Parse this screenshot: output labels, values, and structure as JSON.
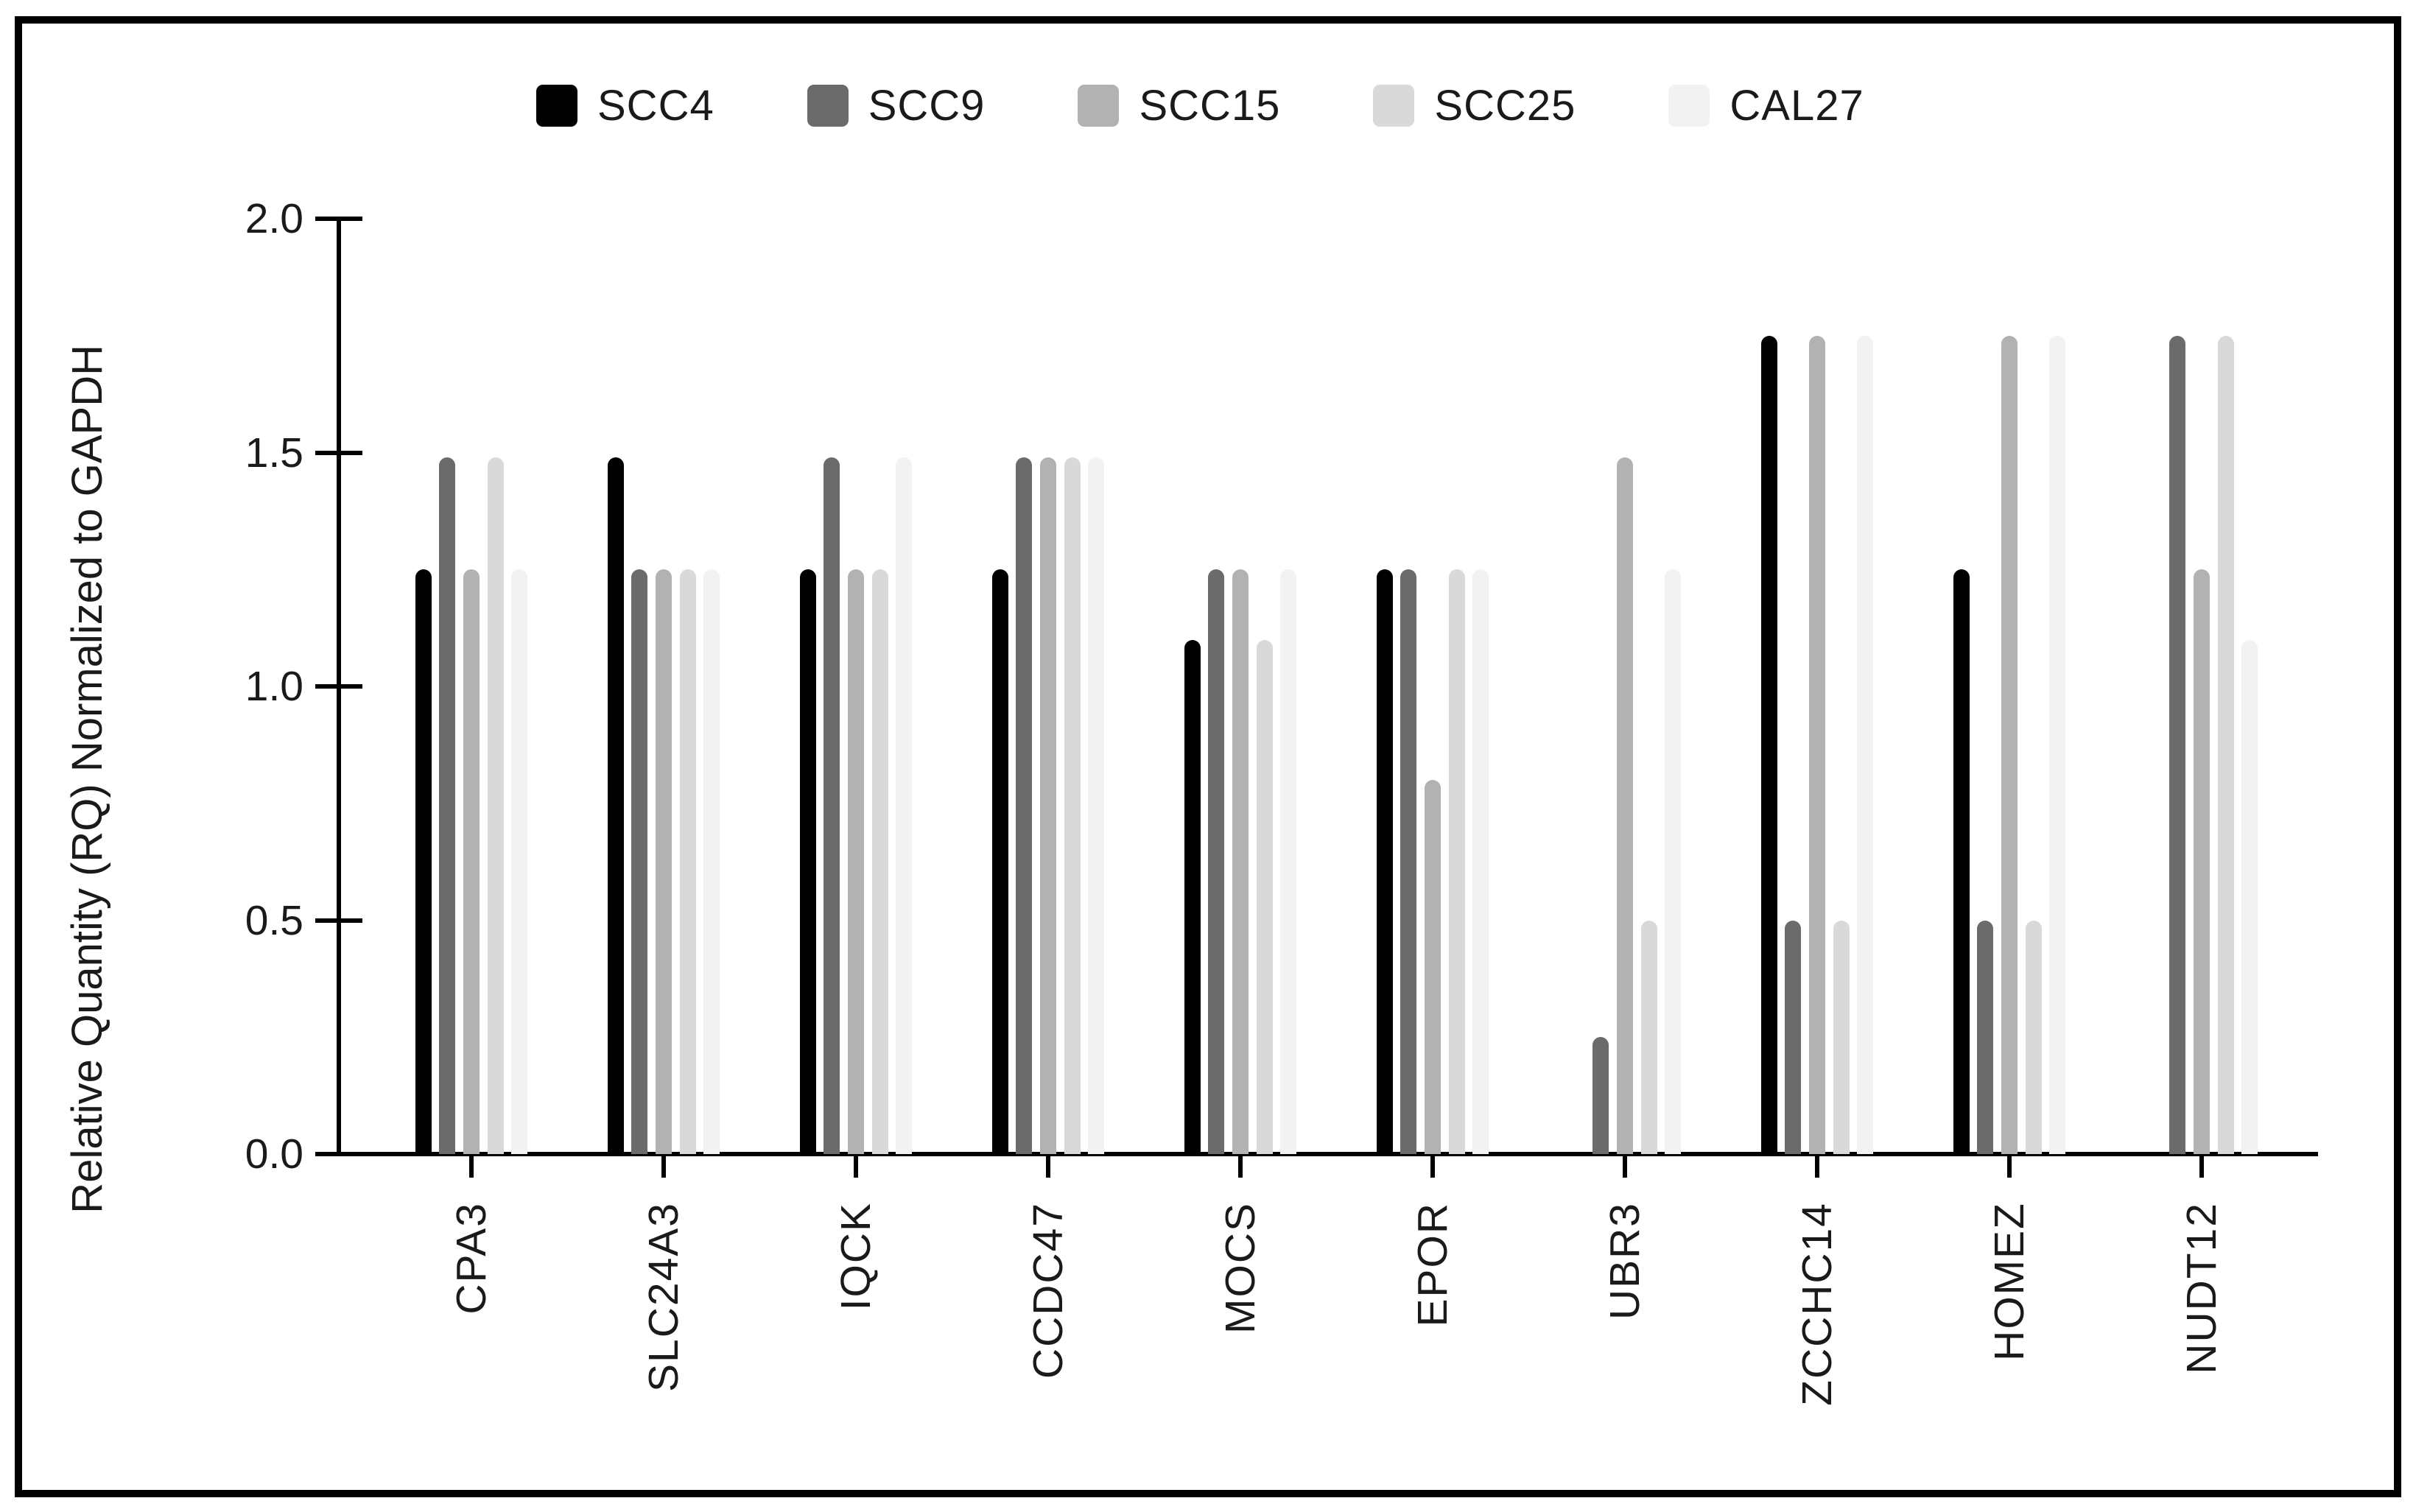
{
  "figure": {
    "frame_color": "#000000",
    "background": "#ffffff",
    "axis_color": "#000000",
    "text_color": "#1a1a1a"
  },
  "chart_data": {
    "type": "bar",
    "title": "",
    "xlabel": "",
    "ylabel": "Relative Quantity (RQ) Normalized to GAPDH",
    "ylim": [
      0,
      2
    ],
    "yticks": [
      0.0,
      0.5,
      1.0,
      1.5,
      2.0
    ],
    "ytick_labels": [
      "0.0",
      "0.5",
      "1.0",
      "1.5",
      "2.0"
    ],
    "grid": false,
    "legend_position": "top",
    "categories": [
      "CPA3",
      "SLC24A3",
      "IQCK",
      "CCDC47",
      "MOCS",
      "EPOR",
      "UBR3",
      "ZCCHC14",
      "HOMEZ",
      "NUDT12"
    ],
    "series": [
      {
        "name": "SCC4",
        "color": "#000000",
        "values": [
          1.25,
          1.49,
          1.25,
          1.25,
          1.1,
          1.25,
          0,
          1.75,
          1.25,
          0
        ]
      },
      {
        "name": "SCC9",
        "color": "#6b6b6b",
        "values": [
          1.49,
          1.25,
          1.49,
          1.49,
          1.25,
          1.25,
          0.25,
          0.5,
          0.5,
          1.75
        ]
      },
      {
        "name": "SCC15",
        "color": "#b2b2b2",
        "values": [
          1.25,
          1.25,
          1.25,
          1.49,
          1.25,
          0.8,
          1.49,
          1.75,
          1.75,
          1.25
        ]
      },
      {
        "name": "SCC25",
        "color": "#d9d9d9",
        "values": [
          1.49,
          1.25,
          1.25,
          1.49,
          1.1,
          1.25,
          0.5,
          0.5,
          0.5,
          1.75
        ]
      },
      {
        "name": "CAL27",
        "color": "#f2f2f2",
        "values": [
          1.25,
          1.25,
          1.49,
          1.49,
          1.25,
          1.25,
          1.25,
          1.75,
          1.75,
          1.1
        ]
      }
    ]
  }
}
